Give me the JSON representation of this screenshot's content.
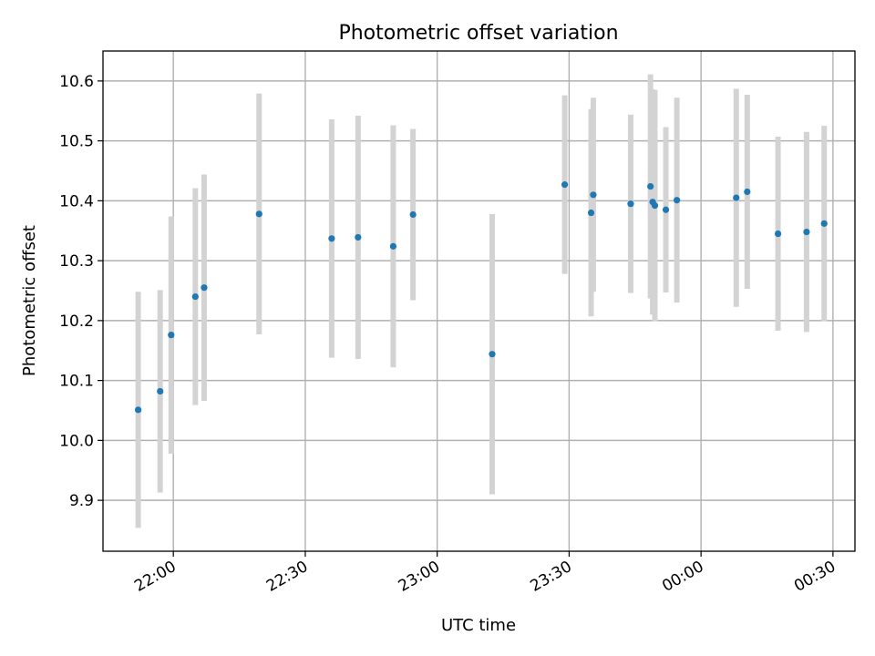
{
  "chart_data": {
    "type": "scatter",
    "title": "Photometric offset variation",
    "xlabel": "UTC time",
    "ylabel": "Photometric offset",
    "x_unit": "UTC time of day, points after midnight carry the next day",
    "xlim": [
      "21:44",
      "00:35"
    ],
    "ylim": [
      9.815,
      10.65
    ],
    "x_ticks": [
      "22:00",
      "22:30",
      "23:00",
      "23:30",
      "00:00",
      "00:30"
    ],
    "y_ticks": [
      9.9,
      10.0,
      10.1,
      10.2,
      10.3,
      10.4,
      10.5,
      10.6
    ],
    "y_tick_labels": [
      "9.9",
      "10.0",
      "10.1",
      "10.2",
      "10.3",
      "10.4",
      "10.5",
      "10.6"
    ],
    "grid": true,
    "point_color": "#1f77b4",
    "errorbar_color": "#d3d3d3",
    "points": [
      {
        "t": "21:52",
        "y": 10.051,
        "err": 0.197
      },
      {
        "t": "21:57",
        "y": 10.082,
        "err": 0.169
      },
      {
        "t": "21:59.5",
        "y": 10.176,
        "err": 0.198
      },
      {
        "t": "22:05",
        "y": 10.24,
        "err": 0.181
      },
      {
        "t": "22:07",
        "y": 10.255,
        "err": 0.189
      },
      {
        "t": "22:19.5",
        "y": 10.378,
        "err": 0.201
      },
      {
        "t": "22:36",
        "y": 10.337,
        "err": 0.199
      },
      {
        "t": "22:42",
        "y": 10.339,
        "err": 0.203
      },
      {
        "t": "22:50",
        "y": 10.324,
        "err": 0.202
      },
      {
        "t": "22:54.5",
        "y": 10.377,
        "err": 0.143
      },
      {
        "t": "23:12.5",
        "y": 10.144,
        "err": 0.234
      },
      {
        "t": "23:29",
        "y": 10.427,
        "err": 0.149
      },
      {
        "t": "23:35",
        "y": 10.38,
        "err": 0.173
      },
      {
        "t": "23:35.5",
        "y": 10.41,
        "err": 0.162
      },
      {
        "t": "23:44",
        "y": 10.395,
        "err": 0.149
      },
      {
        "t": "23:48.5",
        "y": 10.424,
        "err": 0.187
      },
      {
        "t": "23:49",
        "y": 10.398,
        "err": 0.188
      },
      {
        "t": "23:49.5",
        "y": 10.392,
        "err": 0.193
      },
      {
        "t": "23:52",
        "y": 10.385,
        "err": 0.138
      },
      {
        "t": "23:54.5",
        "y": 10.401,
        "err": 0.171
      },
      {
        "t": "00:08",
        "y": 10.405,
        "err": 0.182
      },
      {
        "t": "00:10.5",
        "y": 10.415,
        "err": 0.162
      },
      {
        "t": "00:17.5",
        "y": 10.345,
        "err": 0.162
      },
      {
        "t": "00:24",
        "y": 10.348,
        "err": 0.167
      },
      {
        "t": "00:28",
        "y": 10.362,
        "err": 0.163
      }
    ]
  }
}
